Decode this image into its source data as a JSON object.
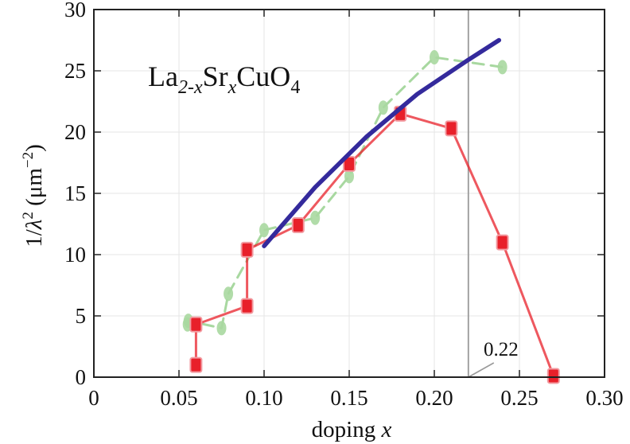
{
  "chart_data": {
    "type": "line",
    "annotation_label": "La2-xSrxCuO4",
    "compound_parts": [
      {
        "text": "La",
        "shift": "none"
      },
      {
        "text": "2-x",
        "shift": "sub",
        "italic": true
      },
      {
        "text": "Sr",
        "shift": "none"
      },
      {
        "text": "x",
        "shift": "sub",
        "italic": true
      },
      {
        "text": "CuO",
        "shift": "none"
      },
      {
        "text": "4",
        "shift": "sub"
      }
    ],
    "xlabel": "doping x",
    "xlabel_parts": {
      "text": "doping ",
      "var": "x"
    },
    "ylabel": "1/λ² (μm⁻²)",
    "ylabel_parts": {
      "pre": "1/",
      "lam": "λ",
      "exp": "2",
      "unit": "μm",
      "uexp": "−2"
    },
    "xlim": [
      0,
      0.3
    ],
    "ylim": [
      0,
      30
    ],
    "x_ticks": [
      0,
      0.05,
      0.1,
      0.15,
      0.2,
      0.25,
      0.3
    ],
    "x_tick_labels": [
      "0",
      "0.05",
      "0.10",
      "0.15",
      "0.20",
      "0.25",
      "0.30"
    ],
    "y_ticks": [
      0,
      5,
      10,
      15,
      20,
      25,
      30
    ],
    "y_tick_labels": [
      "0",
      "5",
      "10",
      "15",
      "20",
      "25",
      "30"
    ],
    "grid": true,
    "series": [
      {
        "role": "red-squares",
        "color": "#e8202a",
        "marker": "square",
        "style": "solid",
        "points": [
          [
            0.06,
            1.0
          ],
          [
            0.06,
            4.3
          ],
          [
            0.09,
            5.8
          ],
          [
            0.09,
            10.4
          ],
          [
            0.12,
            12.4
          ],
          [
            0.15,
            17.4
          ],
          [
            0.18,
            21.5
          ],
          [
            0.21,
            20.3
          ],
          [
            0.24,
            11.0
          ],
          [
            0.27,
            0.1
          ]
        ]
      },
      {
        "role": "green-circles",
        "color": "#a8d8a0",
        "marker": "circle",
        "style": "dashed",
        "points": [
          [
            0.055,
            4.3
          ],
          [
            0.0555,
            4.6
          ],
          [
            0.075,
            4.0
          ],
          [
            0.079,
            6.8
          ],
          [
            0.1,
            12.0
          ],
          [
            0.13,
            13.0
          ],
          [
            0.15,
            16.4
          ],
          [
            0.17,
            22.0
          ],
          [
            0.2,
            26.1
          ],
          [
            0.24,
            25.3
          ]
        ]
      },
      {
        "role": "fit",
        "color": "#342a9c",
        "marker": "none",
        "style": "solid",
        "points": [
          [
            0.1,
            10.7
          ],
          [
            0.13,
            15.5
          ],
          [
            0.16,
            19.6
          ],
          [
            0.19,
            23.1
          ],
          [
            0.22,
            25.9
          ],
          [
            0.238,
            27.5
          ]
        ]
      }
    ],
    "vline": {
      "x": 0.22,
      "label": "0.22",
      "color": "#9a9a9a"
    }
  }
}
